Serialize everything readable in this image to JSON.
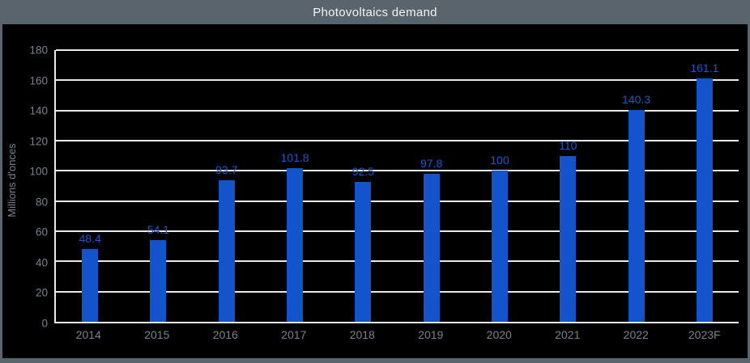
{
  "title": "Photovoltaics demand",
  "colors": {
    "background": "#000000",
    "frame": "#5a646d",
    "title_band": "#5a646d",
    "title_text": "#f2f4f5",
    "bar": "#1353cb",
    "data_label": "#2256cc",
    "axis_text": "#79828b",
    "gridline": "#e9e9e9"
  },
  "chart_data": {
    "type": "bar",
    "title": "Photovoltaics demand",
    "subtitle": "",
    "xlabel": "",
    "ylabel": "Millions d'onces",
    "categories": [
      "2014",
      "2015",
      "2016",
      "2017",
      "2018",
      "2019",
      "2020",
      "2021",
      "2022",
      "2023F"
    ],
    "values": [
      48.4,
      54.1,
      93.7,
      101.8,
      92.5,
      97.8,
      100,
      110,
      140.3,
      161.1
    ],
    "data_labels": [
      "48.4",
      "54.1",
      "93.7",
      "101.8",
      "92.5",
      "97.8",
      "100",
      "110",
      "140.3",
      "161.1"
    ],
    "ylim": [
      0,
      180
    ],
    "ytick_interval": 20,
    "yticks": [
      0,
      20,
      40,
      60,
      80,
      100,
      120,
      140,
      160,
      180
    ],
    "grid": "horizontal",
    "legend": "none"
  }
}
